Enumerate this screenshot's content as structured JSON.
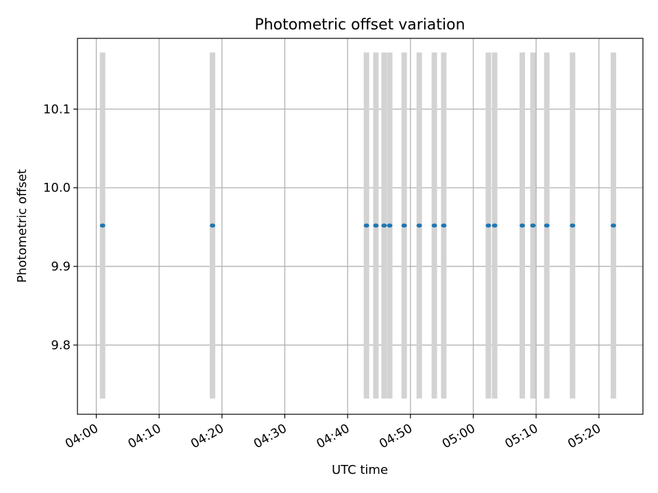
{
  "chart_data": {
    "type": "scatter",
    "title": "Photometric offset variation",
    "xlabel": "UTC time",
    "ylabel": "Photometric offset",
    "x_ticks": [
      "04:00",
      "04:10",
      "04:20",
      "04:30",
      "04:40",
      "04:50",
      "05:00",
      "05:10",
      "05:20"
    ],
    "y_ticks": [
      "9.8",
      "9.9",
      "10.0",
      "10.1"
    ],
    "xlim": [
      "03:57",
      "05:27"
    ],
    "ylim": [
      9.712,
      10.19
    ],
    "grid": true,
    "series": [
      {
        "values": [
          {
            "x": "04:01",
            "y": 9.952,
            "yerr": 0.22
          },
          {
            "x": "04:18.5",
            "y": 9.952,
            "yerr": 0.22
          },
          {
            "x": "04:43",
            "y": 9.952,
            "yerr": 0.22
          },
          {
            "x": "04:44.5",
            "y": 9.952,
            "yerr": 0.22
          },
          {
            "x": "04:45.8",
            "y": 9.952,
            "yerr": 0.22
          },
          {
            "x": "04:46.7",
            "y": 9.952,
            "yerr": 0.22
          },
          {
            "x": "04:49",
            "y": 9.952,
            "yerr": 0.22
          },
          {
            "x": "04:51.4",
            "y": 9.952,
            "yerr": 0.22
          },
          {
            "x": "04:53.8",
            "y": 9.952,
            "yerr": 0.22
          },
          {
            "x": "04:55.3",
            "y": 9.952,
            "yerr": 0.22
          },
          {
            "x": "05:02.4",
            "y": 9.952,
            "yerr": 0.22
          },
          {
            "x": "05:03.4",
            "y": 9.952,
            "yerr": 0.22
          },
          {
            "x": "05:07.8",
            "y": 9.952,
            "yerr": 0.22
          },
          {
            "x": "05:09.5",
            "y": 9.952,
            "yerr": 0.22
          },
          {
            "x": "05:11.7",
            "y": 9.952,
            "yerr": 0.22
          },
          {
            "x": "05:15.8",
            "y": 9.952,
            "yerr": 0.22
          },
          {
            "x": "05:22.3",
            "y": 9.952,
            "yerr": 0.22
          }
        ]
      }
    ],
    "marker_color": "#1f77b4",
    "errorbar_color": "#d3d3d3",
    "grid_color": "#b0b0b0"
  }
}
